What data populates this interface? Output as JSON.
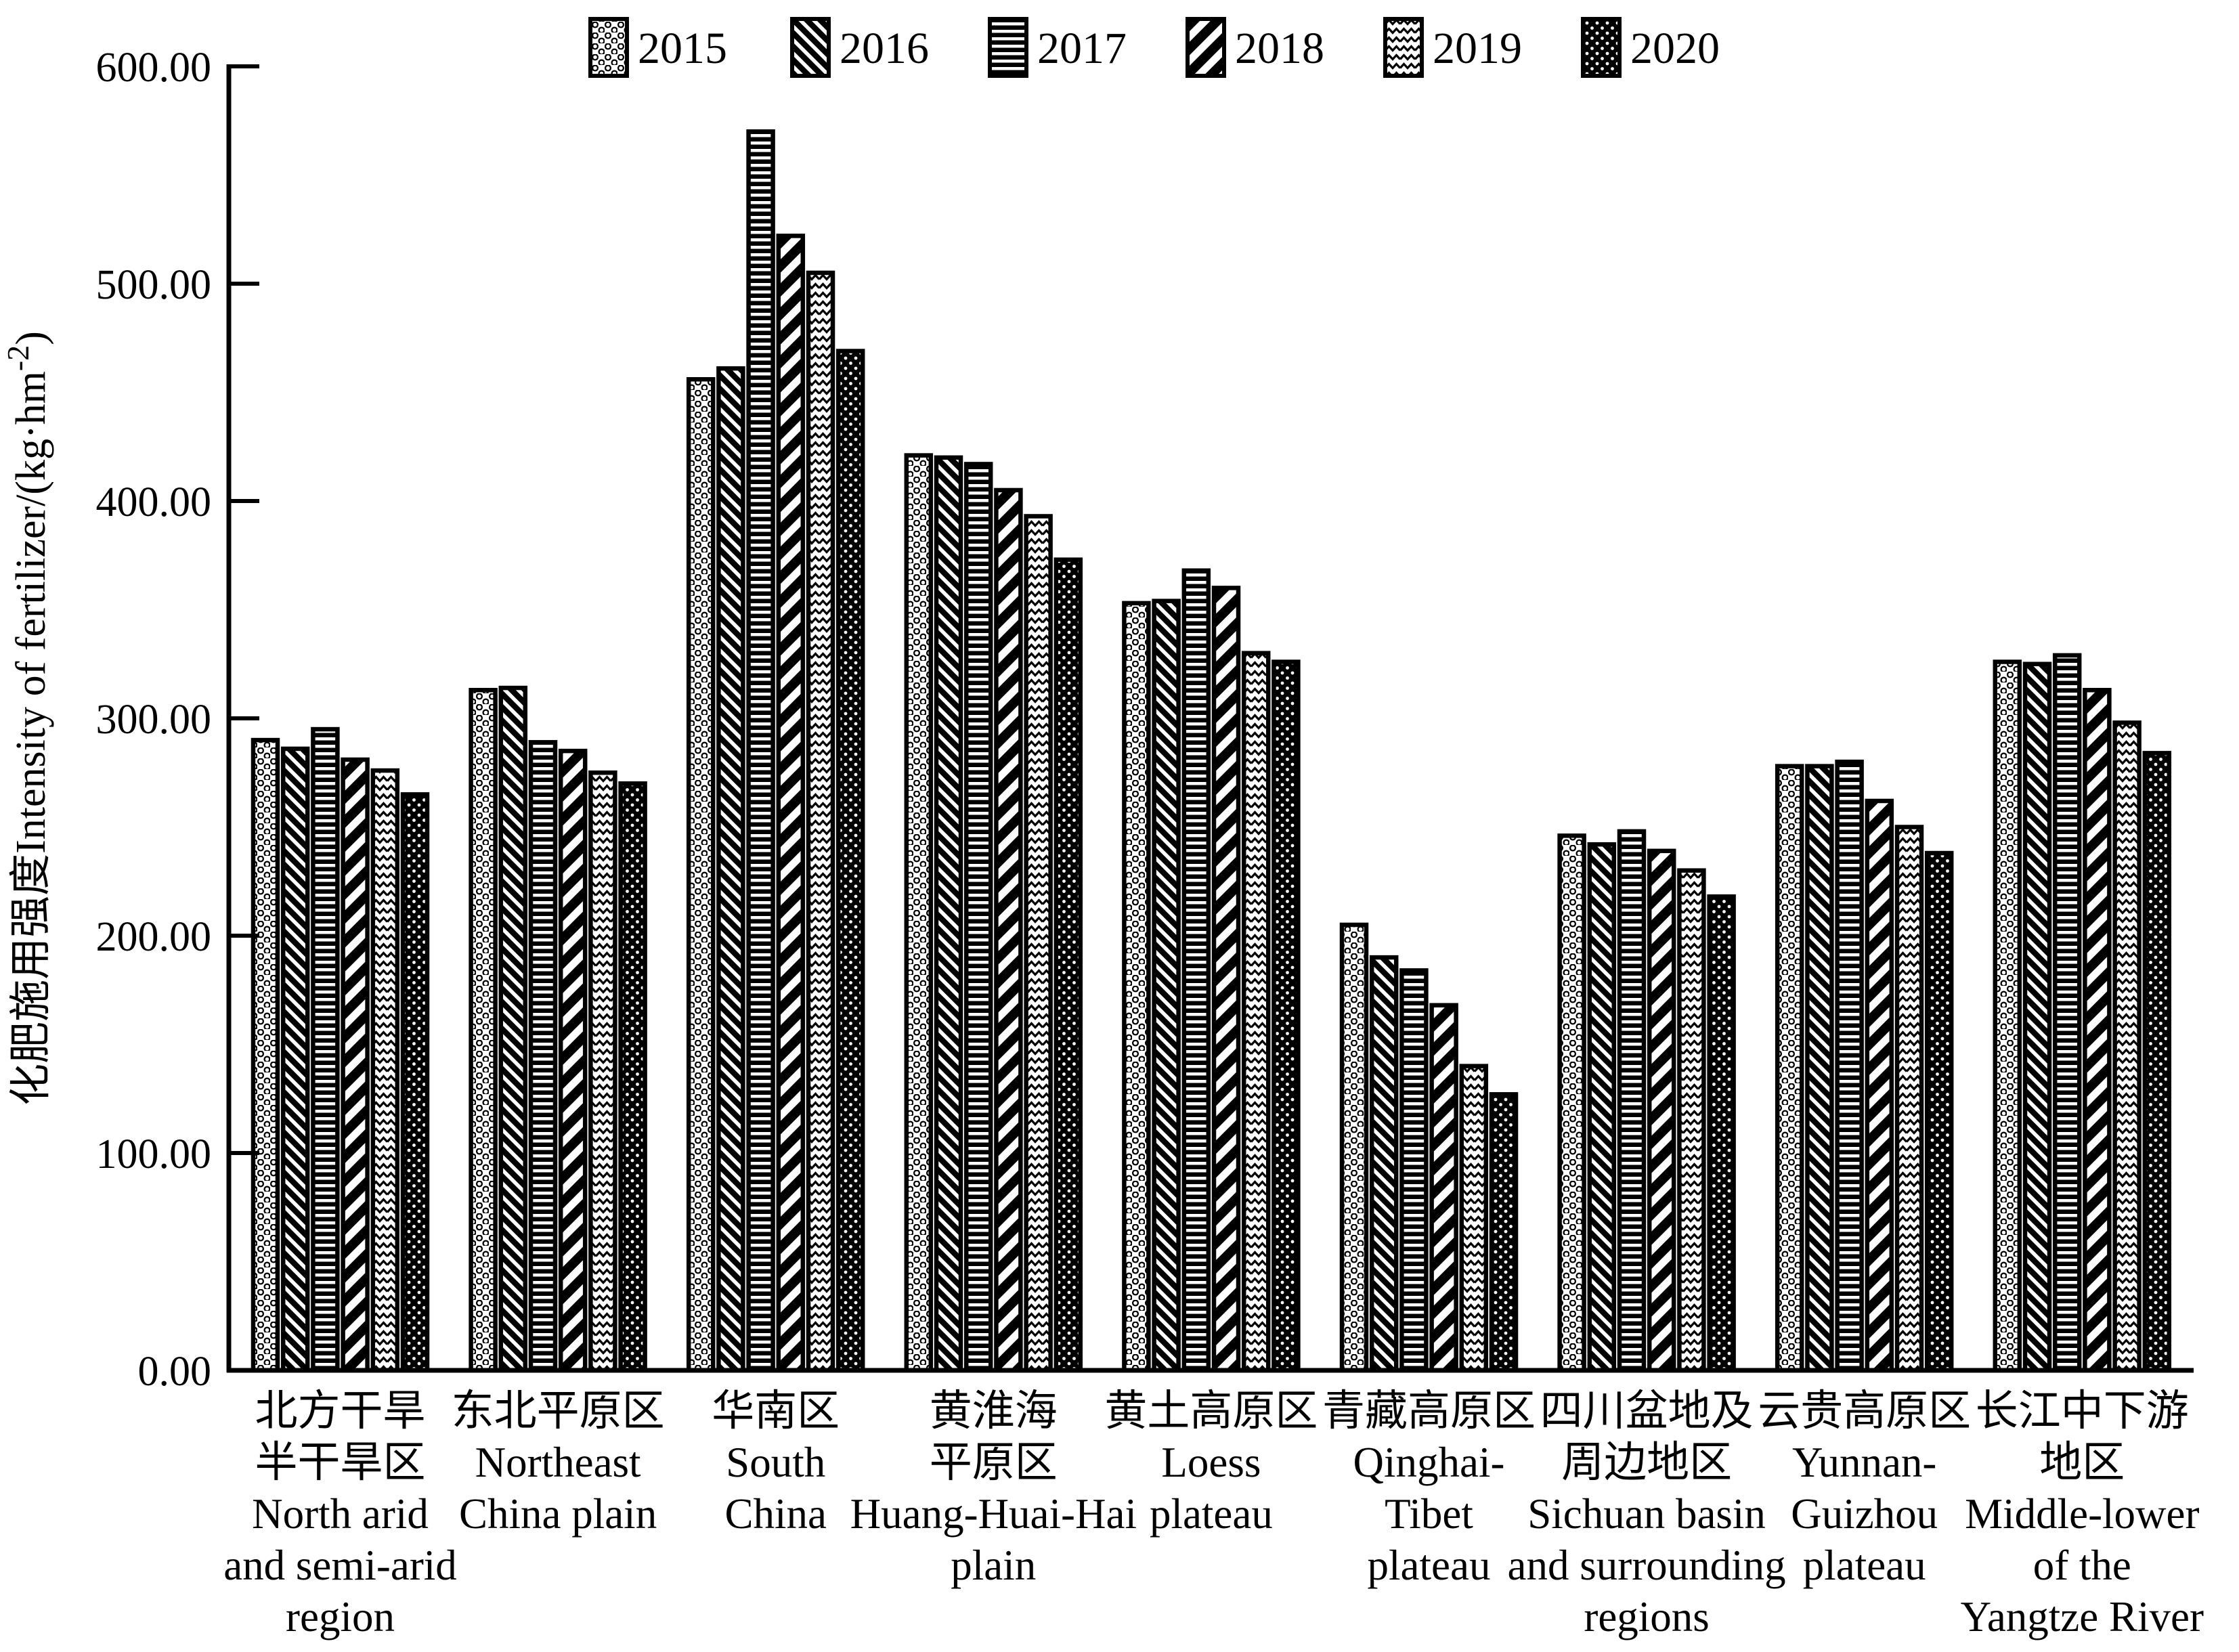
{
  "figure": {
    "background": "#ffffff",
    "ink": "#000000"
  },
  "chart_data": {
    "type": "bar",
    "title": "",
    "ylabel": {
      "prefix": "化肥施用强度Intensity of fertilizer/(kg·hm",
      "superscript": "-2",
      "suffix": ")"
    },
    "ylim": [
      0,
      600
    ],
    "grid": false,
    "legend_position": "top",
    "y_ticks": [
      {
        "value": 0,
        "label": "0.00"
      },
      {
        "value": 100,
        "label": "100.00"
      },
      {
        "value": 200,
        "label": "200.00"
      },
      {
        "value": 300,
        "label": "300.00"
      },
      {
        "value": 400,
        "label": "400.00"
      },
      {
        "value": 500,
        "label": "500.00"
      },
      {
        "value": 600,
        "label": "600.00"
      }
    ],
    "categories": [
      {
        "id": "north-arid-semi-arid",
        "lines": [
          "北方干旱",
          "半干旱区",
          "North arid",
          "and semi-arid",
          "region"
        ]
      },
      {
        "id": "northeast-china-plain",
        "lines": [
          "东北平原区",
          "Northeast",
          "China plain"
        ]
      },
      {
        "id": "south-china",
        "lines": [
          "华南区",
          "South",
          "China"
        ]
      },
      {
        "id": "huang-huai-hai-plain",
        "lines": [
          "黄淮海",
          "平原区",
          "Huang-Huai-Hai",
          "plain"
        ]
      },
      {
        "id": "loess-plateau",
        "lines": [
          "黄土高原区",
          "Loess",
          "plateau"
        ]
      },
      {
        "id": "qinghai-tibet-plateau",
        "lines": [
          "青藏高原区",
          "Qinghai-",
          "Tibet",
          "plateau"
        ]
      },
      {
        "id": "sichuan-basin",
        "lines": [
          "四川盆地及",
          "周边地区",
          "Sichuan basin",
          "and surrounding",
          "regions"
        ]
      },
      {
        "id": "yunnan-guizhou-plateau",
        "lines": [
          "云贵高原区",
          "Yunnan-",
          "Guizhou",
          "plateau"
        ]
      },
      {
        "id": "middle-lower-yangtze",
        "lines": [
          "长江中下游",
          "地区",
          "Middle-lower",
          "of the",
          "Yangtze River"
        ]
      }
    ],
    "series": [
      {
        "name": "2015",
        "pattern": "rings",
        "values": [
          290,
          313,
          456,
          421,
          353,
          205,
          246,
          278,
          326
        ]
      },
      {
        "name": "2016",
        "pattern": "diag-down",
        "values": [
          286,
          314,
          461,
          420,
          354,
          190,
          242,
          278,
          325
        ]
      },
      {
        "name": "2017",
        "pattern": "h-lines",
        "values": [
          295,
          289,
          570,
          417,
          368,
          184,
          248,
          280,
          329
        ]
      },
      {
        "name": "2018",
        "pattern": "diag-up",
        "values": [
          281,
          285,
          522,
          405,
          360,
          168,
          239,
          262,
          313
        ]
      },
      {
        "name": "2019",
        "pattern": "wave",
        "values": [
          276,
          275,
          505,
          393,
          330,
          140,
          230,
          250,
          298
        ]
      },
      {
        "name": "2020",
        "pattern": "dots",
        "values": [
          265,
          270,
          469,
          373,
          326,
          127,
          218,
          238,
          284
        ]
      }
    ]
  }
}
